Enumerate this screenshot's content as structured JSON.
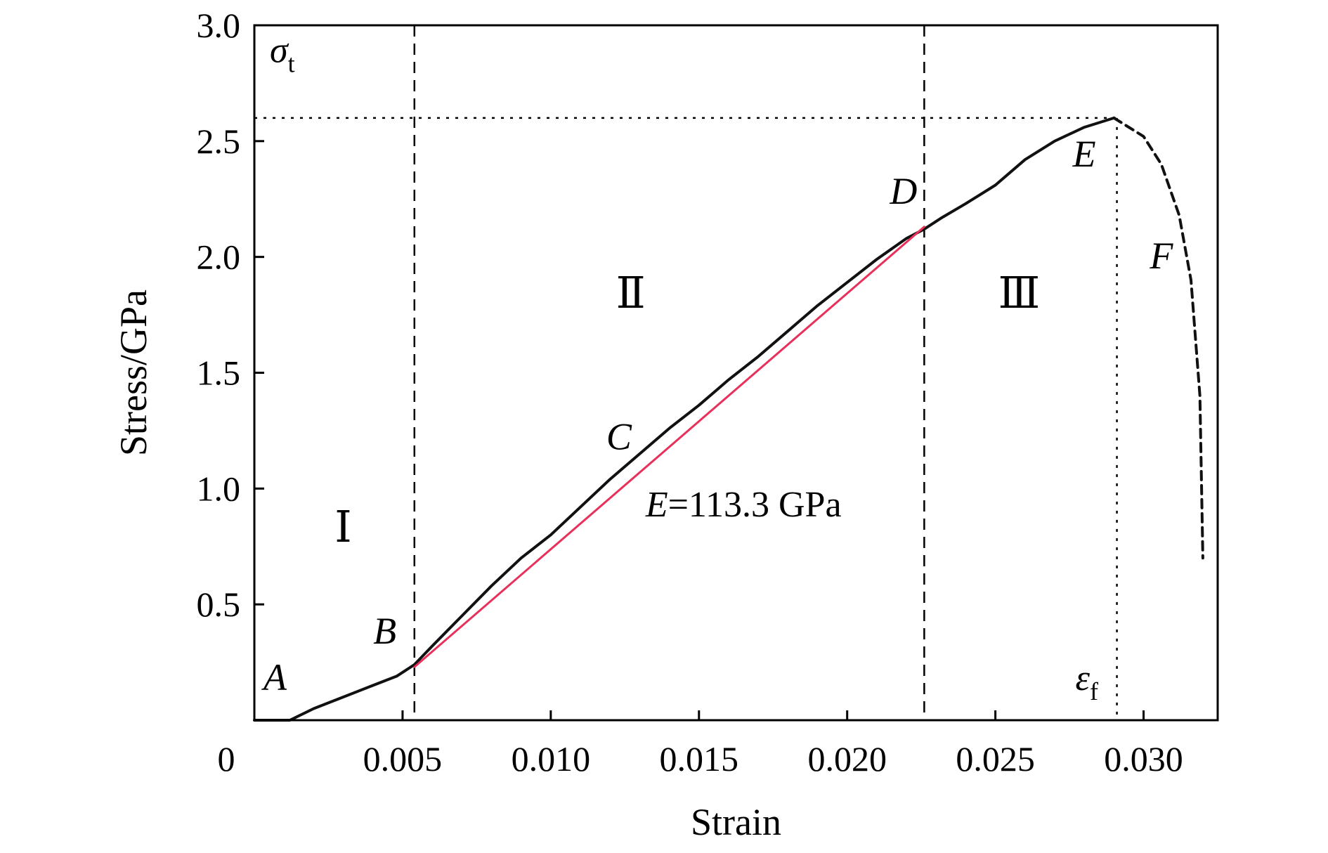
{
  "chart_data": {
    "type": "line",
    "xlabel": "Strain",
    "ylabel": "Stress/GPa",
    "xlim": [
      0,
      0.0325
    ],
    "ylim": [
      0,
      3.0
    ],
    "x_ticks": [
      {
        "value": 0,
        "label": "0"
      },
      {
        "value": 0.005,
        "label": "0.005"
      },
      {
        "value": 0.01,
        "label": "0.010"
      },
      {
        "value": 0.015,
        "label": "0.015"
      },
      {
        "value": 0.02,
        "label": "0.020"
      },
      {
        "value": 0.025,
        "label": "0.025"
      },
      {
        "value": 0.03,
        "label": "0.030"
      }
    ],
    "y_ticks": [
      {
        "value": 0.5,
        "label": "0.5"
      },
      {
        "value": 1.0,
        "label": "1.0"
      },
      {
        "value": 1.5,
        "label": "1.5"
      },
      {
        "value": 2.0,
        "label": "2.0"
      },
      {
        "value": 2.5,
        "label": "2.5"
      },
      {
        "value": 3.0,
        "label": "3.0"
      }
    ],
    "grid": false,
    "legend": "none",
    "series": [
      {
        "role": "measured",
        "color": "#111111",
        "style": "solid",
        "x": [
          0.0,
          0.0012,
          0.002,
          0.003,
          0.004,
          0.0048,
          0.0054,
          0.006,
          0.007,
          0.008,
          0.009,
          0.01,
          0.011,
          0.012,
          0.013,
          0.014,
          0.015,
          0.016,
          0.017,
          0.018,
          0.019,
          0.02,
          0.021,
          0.022,
          0.0226,
          0.0232,
          0.024,
          0.025,
          0.026,
          0.027,
          0.028,
          0.029
        ],
        "y": [
          0.0,
          0.0,
          0.05,
          0.1,
          0.15,
          0.19,
          0.24,
          0.32,
          0.45,
          0.58,
          0.7,
          0.8,
          0.92,
          1.04,
          1.15,
          1.26,
          1.36,
          1.47,
          1.57,
          1.68,
          1.79,
          1.89,
          1.99,
          2.08,
          2.12,
          2.17,
          2.23,
          2.31,
          2.42,
          2.5,
          2.56,
          2.6
        ]
      },
      {
        "role": "fracture",
        "color": "#111111",
        "style": "dashed",
        "x": [
          0.029,
          0.03,
          0.0306,
          0.0312,
          0.0316,
          0.0319,
          0.032
        ],
        "y": [
          2.6,
          2.52,
          2.4,
          2.18,
          1.9,
          1.4,
          0.7
        ]
      },
      {
        "role": "linear-fit",
        "color": "#e8305a",
        "style": "solid",
        "x": [
          0.0054,
          0.0226
        ],
        "y": [
          0.23,
          2.13
        ]
      }
    ],
    "reference_lines": [
      {
        "orientation": "vertical",
        "x": 0.0054,
        "style": "dashed"
      },
      {
        "orientation": "vertical",
        "x": 0.0226,
        "style": "dashed"
      },
      {
        "orientation": "vertical",
        "x": 0.0291,
        "y_max": 2.6,
        "style": "dotted"
      },
      {
        "orientation": "horizontal",
        "y": 2.6,
        "x_max": 0.0291,
        "style": "dotted"
      }
    ],
    "point_labels": [
      {
        "text": "A",
        "x": 0.0007,
        "y": 0.13
      },
      {
        "text": "B",
        "x": 0.0044,
        "y": 0.33
      },
      {
        "text": "C",
        "x": 0.0123,
        "y": 1.17
      },
      {
        "text": "D",
        "x": 0.0219,
        "y": 2.23
      },
      {
        "text": "E",
        "x": 0.028,
        "y": 2.39
      },
      {
        "text": "F",
        "x": 0.0306,
        "y": 1.95
      }
    ],
    "region_labels": [
      {
        "text": "Ⅰ",
        "x": 0.003,
        "y": 0.77
      },
      {
        "text": "Ⅱ",
        "x": 0.0127,
        "y": 1.78
      },
      {
        "text": "Ⅲ",
        "x": 0.0258,
        "y": 1.78
      }
    ],
    "annotations": {
      "modulus_symbol": "E",
      "modulus_text": "=113.3 GPa",
      "sigma_symbol": "σ",
      "sigma_sub": "t",
      "epsilon_symbol": "ε",
      "epsilon_sub": "f"
    }
  }
}
